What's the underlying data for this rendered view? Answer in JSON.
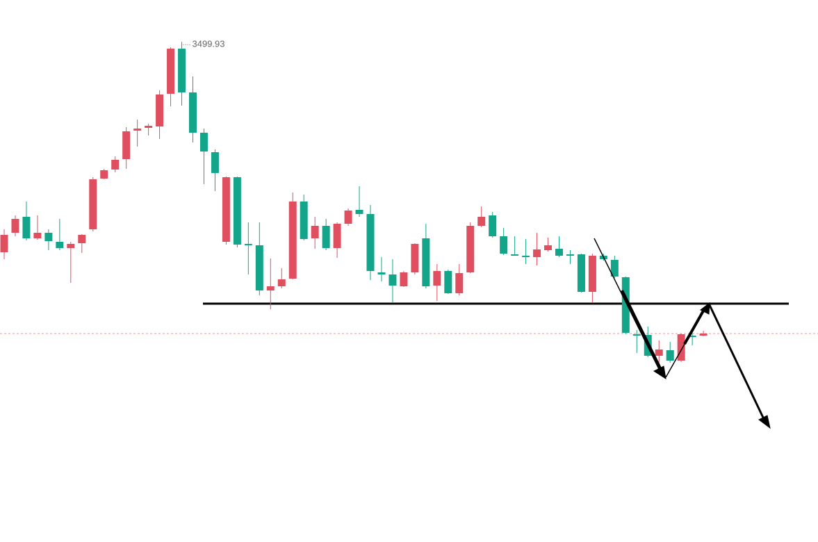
{
  "chart_data": {
    "type": "candlestick",
    "up_color": "#e04f5f",
    "down_color": "#12a58a",
    "ylim": [
      3320,
      3515
    ],
    "open": [
      3424.25,
      3431.25,
      3437,
      3429.25,
      3431.25,
      3428,
      3425.75,
      3427.5,
      3432.5,
      3450.75,
      3454,
      3457.75,
      3468,
      3469,
      3469.5,
      3481.25,
      3497.5,
      3481.75,
      3467.25,
      3460.25,
      3428,
      3451.25,
      3427.25,
      3426.75,
      3410.5,
      3412,
      3414.75,
      3442.5,
      3429.25,
      3433.75,
      3425.75,
      3434.5,
      3439.5,
      3438,
      3417,
      3416.25,
      3412,
      3417,
      3429.25,
      3412.25,
      3417.5,
      3409.5,
      3417,
      3433.75,
      3437.5,
      3430,
      3423.5,
      3423,
      3422.5,
      3425,
      3425.5,
      3423.5,
      3423.5,
      3410,
      3423,
      3421.5,
      3415.25,
      3394.75,
      3394.5,
      3387,
      3389,
      3385.25,
      3394.25,
      3394.25
    ],
    "high": [
      3432.5,
      3437.5,
      3442.5,
      3437.5,
      3432.5,
      3436.25,
      3428,
      3430.75,
      3451.25,
      3454.25,
      3458.75,
      3469.25,
      3472,
      3470.5,
      3482.5,
      3498,
      3499.93,
      3487.5,
      3468.75,
      3461.25,
      3451.5,
      3451.5,
      3435,
      3435,
      3422,
      3418.5,
      3445.75,
      3445,
      3437,
      3436.25,
      3435,
      3440,
      3448,
      3441.25,
      3422.5,
      3421.75,
      3417.5,
      3427.5,
      3434.5,
      3420,
      3418,
      3420,
      3435,
      3440.75,
      3438.75,
      3433,
      3430,
      3429,
      3431.25,
      3429.5,
      3430,
      3425,
      3423.75,
      3423.75,
      3423.75,
      3423,
      3415.5,
      3396.25,
      3397.5,
      3392.5,
      3392,
      3395,
      3395,
      3396
    ],
    "low": [
      3421.75,
      3430,
      3428.5,
      3428.75,
      3425,
      3425,
      3413.25,
      3424,
      3431.75,
      3450.5,
      3453,
      3454.25,
      3462.25,
      3466.25,
      3465,
      3476.75,
      3477,
      3463.75,
      3448.75,
      3446.25,
      3427,
      3426,
      3416.25,
      3408.75,
      3403.75,
      3411.25,
      3414.5,
      3428.5,
      3425.5,
      3425,
      3422.25,
      3433.75,
      3437,
      3414.25,
      3413.75,
      3406.25,
      3411.75,
      3416.25,
      3411.25,
      3406.75,
      3409.25,
      3408.75,
      3416.75,
      3433.25,
      3429.5,
      3423.25,
      3423,
      3420,
      3419.5,
      3424.5,
      3422.5,
      3420,
      3409.75,
      3406.25,
      3421.25,
      3415,
      3394.75,
      3388,
      3386.5,
      3382.5,
      3384.5,
      3384.75,
      3390.75,
      3394
    ],
    "close": [
      3430.5,
      3436.25,
      3429.25,
      3431.25,
      3428.25,
      3425.75,
      3427.25,
      3430.5,
      3450.5,
      3453.75,
      3457.5,
      3467.75,
      3468.75,
      3469.75,
      3481,
      3497.5,
      3481.75,
      3467.25,
      3460.5,
      3452.75,
      3451.25,
      3427,
      3426.75,
      3410.5,
      3412,
      3414.5,
      3442.5,
      3429,
      3433.75,
      3425.75,
      3434.5,
      3439.25,
      3438,
      3417.5,
      3416.25,
      3412.25,
      3417,
      3427.25,
      3412,
      3417.5,
      3409.5,
      3416.75,
      3433.75,
      3437,
      3430,
      3423.75,
      3423,
      3422.5,
      3425.25,
      3426.75,
      3423,
      3423,
      3410,
      3423,
      3421.75,
      3415.5,
      3395.25,
      3394.25,
      3387,
      3389.25,
      3385.25,
      3394.75,
      3393.75,
      3395
    ],
    "last_price": 3395,
    "level": 3405.75
  }
}
